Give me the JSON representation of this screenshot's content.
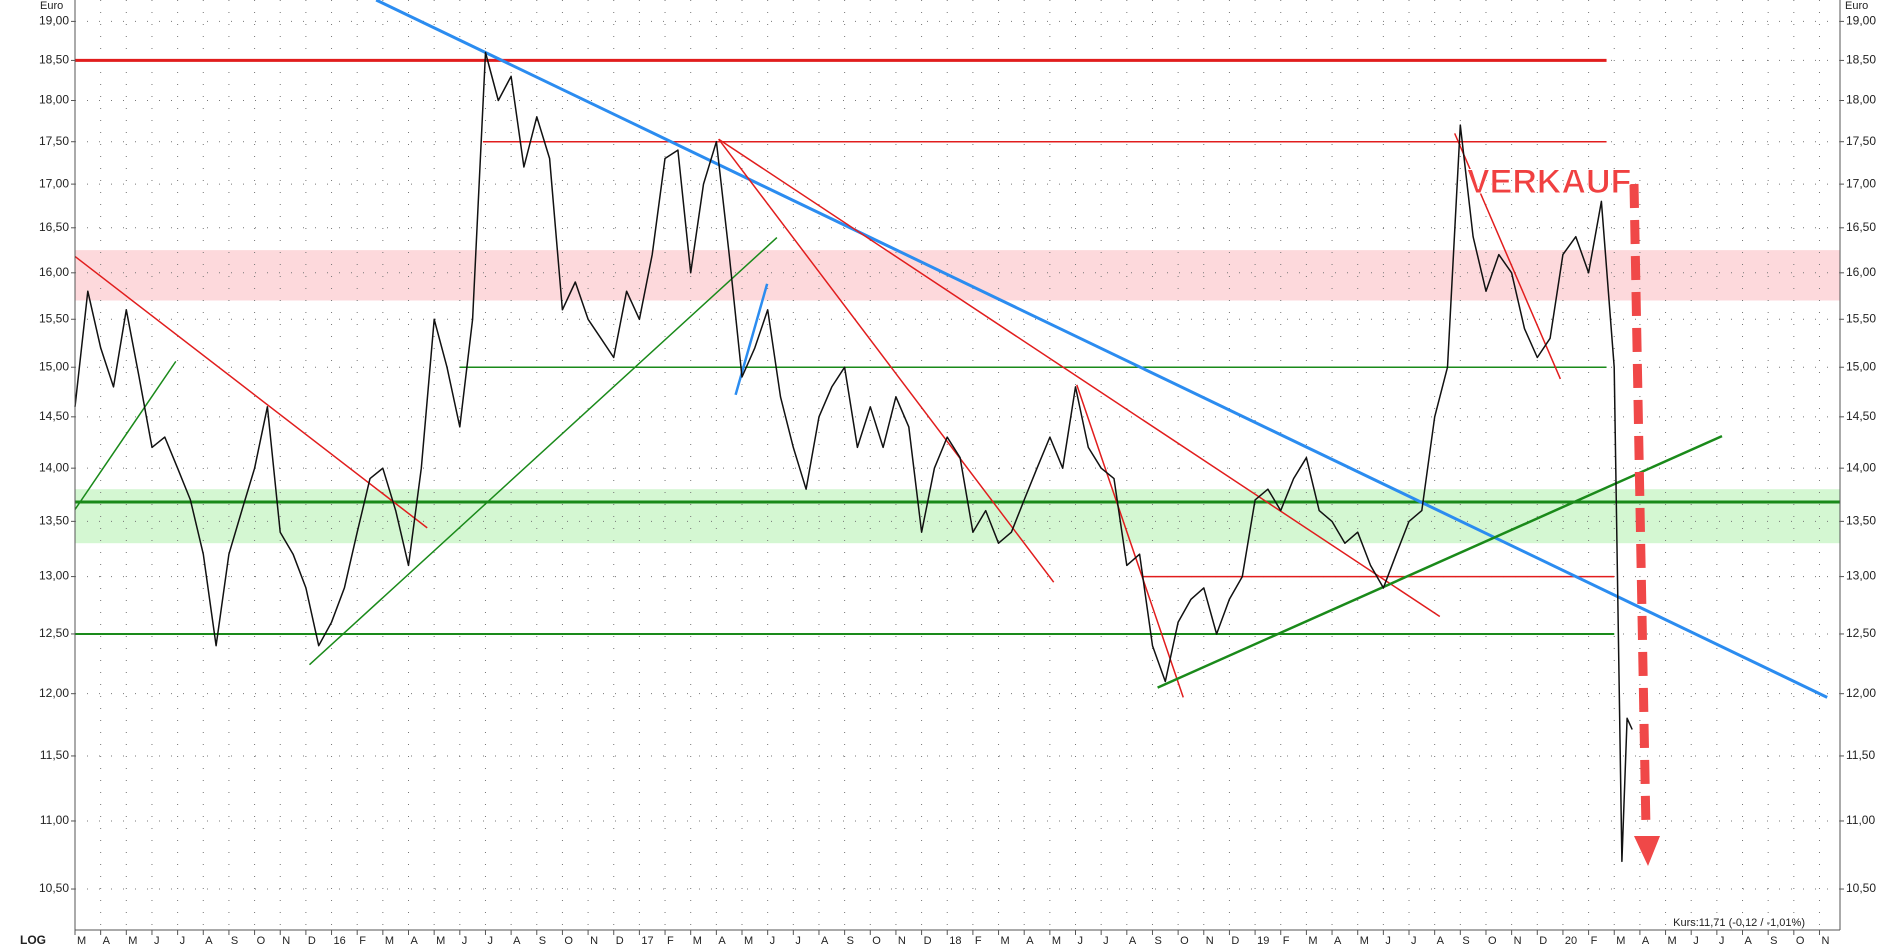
{
  "chart_data": {
    "type": "line",
    "axis_unit": "Euro",
    "scale_label": "LOG",
    "annotation": "VERKAUF",
    "status": "Kurs:11,71 (-0,12 / -1,01%)",
    "log_scale": true,
    "grid": true,
    "xlim": [
      0,
      68.8
    ],
    "ylim": [
      10.21,
      19.28
    ],
    "yticks": [
      {
        "value": 10.5,
        "label": "10,50"
      },
      {
        "value": 11,
        "label": "11,00"
      },
      {
        "value": 11.5,
        "label": "11,50"
      },
      {
        "value": 12,
        "label": "12,00"
      },
      {
        "value": 12.5,
        "label": "12,50"
      },
      {
        "value": 13,
        "label": "13,00"
      },
      {
        "value": 13.5,
        "label": "13,50"
      },
      {
        "value": 14,
        "label": "14,00"
      },
      {
        "value": 14.5,
        "label": "14,50"
      },
      {
        "value": 15,
        "label": "15,00"
      },
      {
        "value": 15.5,
        "label": "15,50"
      },
      {
        "value": 16,
        "label": "16,00"
      },
      {
        "value": 16.5,
        "label": "16,50"
      },
      {
        "value": 17,
        "label": "17,00"
      },
      {
        "value": 17.5,
        "label": "17,50"
      },
      {
        "value": 18,
        "label": "18,00"
      },
      {
        "value": 18.5,
        "label": "18,50"
      },
      {
        "value": 19,
        "label": "19,00"
      }
    ],
    "xticks": [
      {
        "value": 0,
        "label": "M"
      },
      {
        "value": 1,
        "label": "A"
      },
      {
        "value": 2,
        "label": "M"
      },
      {
        "value": 3,
        "label": "J"
      },
      {
        "value": 4,
        "label": "J"
      },
      {
        "value": 5,
        "label": "A"
      },
      {
        "value": 6,
        "label": "S"
      },
      {
        "value": 7,
        "label": "O"
      },
      {
        "value": 8,
        "label": "N"
      },
      {
        "value": 9,
        "label": "D"
      },
      {
        "value": 10,
        "label": "16"
      },
      {
        "value": 11,
        "label": "F"
      },
      {
        "value": 12,
        "label": "M"
      },
      {
        "value": 13,
        "label": "A"
      },
      {
        "value": 14,
        "label": "M"
      },
      {
        "value": 15,
        "label": "J"
      },
      {
        "value": 16,
        "label": "J"
      },
      {
        "value": 17,
        "label": "A"
      },
      {
        "value": 18,
        "label": "S"
      },
      {
        "value": 19,
        "label": "O"
      },
      {
        "value": 20,
        "label": "N"
      },
      {
        "value": 21,
        "label": "D"
      },
      {
        "value": 22,
        "label": "17"
      },
      {
        "value": 23,
        "label": "F"
      },
      {
        "value": 24,
        "label": "M"
      },
      {
        "value": 25,
        "label": "A"
      },
      {
        "value": 26,
        "label": "M"
      },
      {
        "value": 27,
        "label": "J"
      },
      {
        "value": 28,
        "label": "J"
      },
      {
        "value": 29,
        "label": "A"
      },
      {
        "value": 30,
        "label": "S"
      },
      {
        "value": 31,
        "label": "O"
      },
      {
        "value": 32,
        "label": "N"
      },
      {
        "value": 33,
        "label": "D"
      },
      {
        "value": 34,
        "label": "18"
      },
      {
        "value": 35,
        "label": "F"
      },
      {
        "value": 36,
        "label": "M"
      },
      {
        "value": 37,
        "label": "A"
      },
      {
        "value": 38,
        "label": "M"
      },
      {
        "value": 39,
        "label": "J"
      },
      {
        "value": 40,
        "label": "J"
      },
      {
        "value": 41,
        "label": "A"
      },
      {
        "value": 42,
        "label": "S"
      },
      {
        "value": 43,
        "label": "O"
      },
      {
        "value": 44,
        "label": "N"
      },
      {
        "value": 45,
        "label": "D"
      },
      {
        "value": 46,
        "label": "19"
      },
      {
        "value": 47,
        "label": "F"
      },
      {
        "value": 48,
        "label": "M"
      },
      {
        "value": 49,
        "label": "A"
      },
      {
        "value": 50,
        "label": "M"
      },
      {
        "value": 51,
        "label": "J"
      },
      {
        "value": 52,
        "label": "J"
      },
      {
        "value": 53,
        "label": "A"
      },
      {
        "value": 54,
        "label": "S"
      },
      {
        "value": 55,
        "label": "O"
      },
      {
        "value": 56,
        "label": "N"
      },
      {
        "value": 57,
        "label": "D"
      },
      {
        "value": 58,
        "label": "20"
      },
      {
        "value": 59,
        "label": "F"
      },
      {
        "value": 60,
        "label": "M"
      },
      {
        "value": 61,
        "label": "A"
      },
      {
        "value": 62,
        "label": "M"
      },
      {
        "value": 63,
        "label": "J"
      },
      {
        "value": 64,
        "label": "J"
      },
      {
        "value": 65,
        "label": "A"
      },
      {
        "value": 66,
        "label": "S"
      },
      {
        "value": 67,
        "label": "O"
      },
      {
        "value": 68,
        "label": "N"
      }
    ],
    "series": [
      {
        "color": "#111111",
        "x": [
          0,
          0.5,
          1,
          1.5,
          2,
          2.5,
          3,
          3.5,
          4,
          4.5,
          5,
          5.5,
          6,
          6.5,
          7,
          7.5,
          8,
          8.5,
          9,
          9.5,
          10,
          10.5,
          11,
          11.5,
          12,
          12.5,
          13,
          13.5,
          14,
          14.5,
          15,
          15.5,
          16,
          16.5,
          17,
          17.5,
          18,
          18.5,
          19,
          19.5,
          20,
          20.5,
          21,
          21.5,
          22,
          22.5,
          23,
          23.5,
          24,
          24.5,
          25,
          25.5,
          26,
          26.5,
          27,
          27.5,
          28,
          28.5,
          29,
          29.5,
          30,
          30.5,
          31,
          31.5,
          32,
          32.5,
          33,
          33.5,
          34,
          34.5,
          35,
          35.5,
          36,
          36.5,
          37,
          37.5,
          38,
          38.5,
          39,
          39.5,
          40,
          40.5,
          41,
          41.5,
          42,
          42.5,
          43,
          43.5,
          44,
          44.5,
          45,
          45.5,
          46,
          46.5,
          47,
          47.5,
          48,
          48.5,
          49,
          49.5,
          50,
          50.5,
          51,
          51.5,
          52,
          52.5,
          53,
          53.5,
          54,
          54.5,
          55,
          55.5,
          56,
          56.5,
          57,
          57.5,
          58,
          58.5,
          59,
          59.5,
          60,
          60.3,
          60.5,
          60.7
        ],
        "values": [
          14.6,
          15.8,
          15.2,
          14.8,
          15.6,
          14.9,
          14.2,
          14.3,
          14.0,
          13.7,
          13.2,
          12.4,
          13.2,
          13.6,
          14.0,
          14.6,
          13.4,
          13.2,
          12.9,
          12.4,
          12.6,
          12.9,
          13.4,
          13.9,
          14.0,
          13.6,
          13.1,
          14.0,
          15.5,
          15.0,
          14.4,
          15.5,
          18.6,
          18.0,
          18.3,
          17.2,
          17.8,
          17.3,
          15.6,
          15.9,
          15.5,
          15.3,
          15.1,
          15.8,
          15.5,
          16.2,
          17.3,
          17.4,
          16.0,
          17.0,
          17.5,
          16.2,
          14.9,
          15.2,
          15.6,
          14.7,
          14.2,
          13.8,
          14.5,
          14.8,
          15.0,
          14.2,
          14.6,
          14.2,
          14.7,
          14.4,
          13.4,
          14.0,
          14.3,
          14.1,
          13.4,
          13.6,
          13.3,
          13.4,
          13.7,
          14.0,
          14.3,
          14.0,
          14.8,
          14.2,
          14.0,
          13.9,
          13.1,
          13.2,
          12.4,
          12.1,
          12.6,
          12.8,
          12.9,
          12.5,
          12.8,
          13.0,
          13.7,
          13.8,
          13.6,
          13.9,
          14.1,
          13.6,
          13.5,
          13.3,
          13.4,
          13.1,
          12.9,
          13.2,
          13.5,
          13.6,
          14.5,
          15.0,
          17.7,
          16.4,
          15.8,
          16.2,
          16.0,
          15.4,
          15.1,
          15.3,
          16.2,
          16.4,
          16.0,
          16.8,
          15.0,
          10.7,
          11.8,
          11.71
        ]
      }
    ],
    "bands": [
      {
        "color": "#fdd9dc",
        "values": [
          15.7,
          16.25
        ]
      },
      {
        "color": "#d4f7d2",
        "values": [
          13.3,
          13.8
        ]
      }
    ],
    "lines": [
      {
        "color": "#e11d1d",
        "width": 3,
        "x": [
          0,
          59.7
        ],
        "values": [
          18.5,
          18.5
        ]
      },
      {
        "color": "#e11d1d",
        "width": 1.5,
        "x": [
          15.9,
          59.7
        ],
        "values": [
          17.5,
          17.5
        ]
      },
      {
        "color": "#1a8a1a",
        "width": 1.5,
        "x": [
          15,
          59.7
        ],
        "values": [
          15,
          15
        ]
      },
      {
        "color": "#1a8a1a",
        "width": 3,
        "x": [
          0,
          68.8
        ],
        "values": [
          13.68,
          13.68
        ]
      },
      {
        "color": "#e11d1d",
        "width": 1.5,
        "x": [
          41.6,
          60
        ],
        "values": [
          13,
          13
        ]
      },
      {
        "color": "#1a8a1a",
        "width": 2,
        "x": [
          0,
          60
        ],
        "values": [
          12.5,
          12.5
        ]
      },
      {
        "color": "#2b8cf0",
        "width": 3,
        "x": [
          11.74,
          68.3
        ],
        "values": [
          19.28,
          11.97
        ]
      },
      {
        "color": "#2b8cf0",
        "width": 2.5,
        "x": [
          25.75,
          26.98
        ],
        "values": [
          14.72,
          15.88
        ]
      },
      {
        "color": "#e11d1d",
        "width": 1.5,
        "x": [
          0,
          13.73
        ],
        "values": [
          16.18,
          13.44
        ]
      },
      {
        "color": "#e11d1d",
        "width": 1.5,
        "x": [
          25.09,
          38.15
        ],
        "values": [
          17.53,
          12.95
        ]
      },
      {
        "color": "#e11d1d",
        "width": 1.5,
        "x": [
          25.09,
          53.2
        ],
        "values": [
          17.53,
          12.65
        ]
      },
      {
        "color": "#e11d1d",
        "width": 1.5,
        "x": [
          39.05,
          43.2
        ],
        "values": [
          14.82,
          11.97
        ]
      },
      {
        "color": "#e11d1d",
        "width": 1.5,
        "x": [
          53.78,
          57.9
        ],
        "values": [
          17.6,
          14.88
        ]
      },
      {
        "color": "#1a8a1a",
        "width": 1.5,
        "x": [
          9.14,
          27.36
        ],
        "values": [
          12.24,
          16.39
        ]
      },
      {
        "color": "#1a8a1a",
        "width": 2.5,
        "x": [
          42.2,
          64.2
        ],
        "values": [
          12.05,
          14.31
        ]
      },
      {
        "color": "#1a8a1a",
        "width": 1.5,
        "x": [
          0,
          3.93
        ],
        "values": [
          13.61,
          15.06
        ]
      }
    ]
  }
}
